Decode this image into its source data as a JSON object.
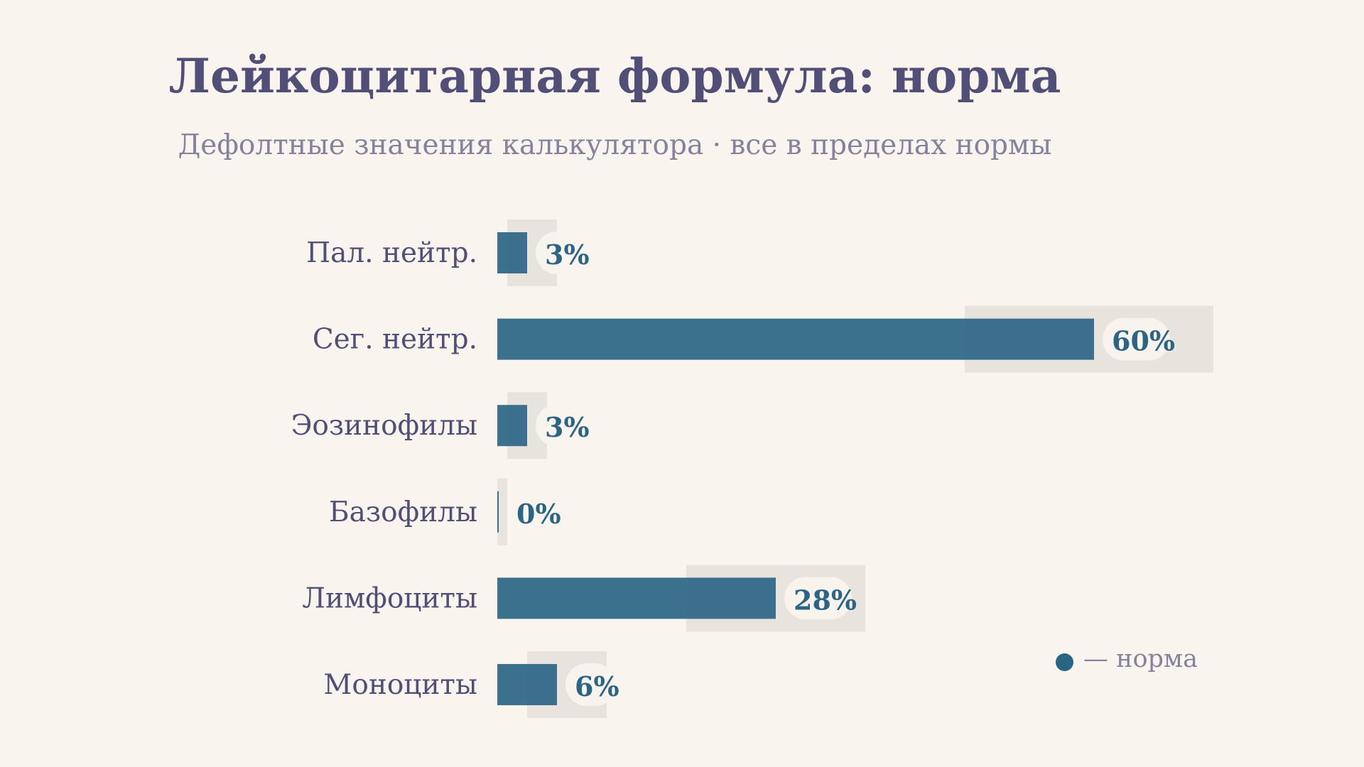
{
  "chart_data": {
    "type": "bar",
    "orientation": "horizontal",
    "title": "Лейкоцитарная формула: норма",
    "subtitle": "Дефолтные значения калькулятора · все в пределах нормы",
    "categories": [
      "Пал. нейтр.",
      "Сег. нейтр.",
      "Эозинофилы",
      "Базофилы",
      "Лимфоциты",
      "Моноциты"
    ],
    "values": [
      3,
      60,
      3,
      0,
      28,
      6
    ],
    "value_labels": [
      "3%",
      "60%",
      "3%",
      "0%",
      "28%",
      "6%"
    ],
    "unit": "%",
    "normal_ranges": [
      [
        1,
        6
      ],
      [
        47,
        72
      ],
      [
        1,
        5
      ],
      [
        0,
        1
      ],
      [
        19,
        37
      ],
      [
        3,
        11
      ]
    ],
    "legend": {
      "marker_label": "— норма",
      "placement": "bottom-right"
    },
    "grid": false,
    "colors": {
      "bar": "#2b6585",
      "normal_band": "#e8e3dd",
      "value_text": "#2b6585",
      "title": "#514e78",
      "subtitle": "#85829d",
      "background": "#faf4ee"
    }
  }
}
